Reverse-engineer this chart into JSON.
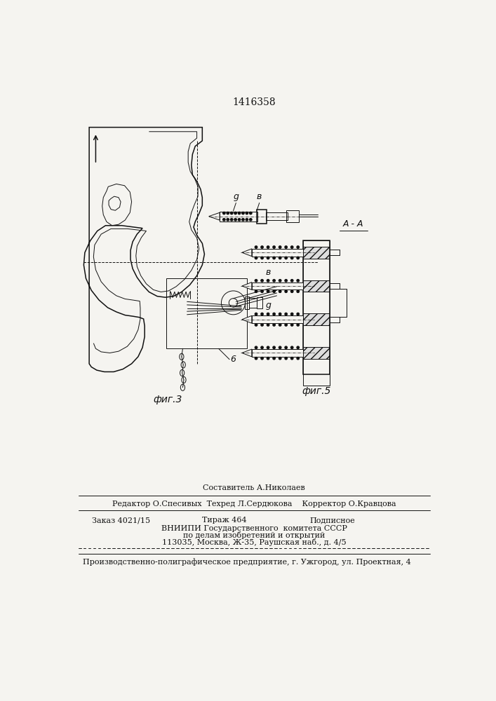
{
  "patent_number": "1416358",
  "fig3_label": "фиг.3",
  "fig5_label": "фиг.5",
  "aa_label": "A - A",
  "label_g": "g",
  "label_b": "в",
  "label_6": "6",
  "line1": "Составитель А.Николаев",
  "line2": "Редактор О.Спесивых  Техред Л.Сердюкова    Корректор О.Кравцова",
  "line4": "ВНИИПИ Государственного  комитета СССР",
  "line5": "по делам изобретений и открытий",
  "line6": "113035, Москва, Ж-35, Раушская наб., д. 4/5",
  "line7": "Производственно-полиграфическое предприятие, г. Ужгород, ул. Проектная, 4",
  "bg_color": "#f5f4f0",
  "line_color": "#111111"
}
